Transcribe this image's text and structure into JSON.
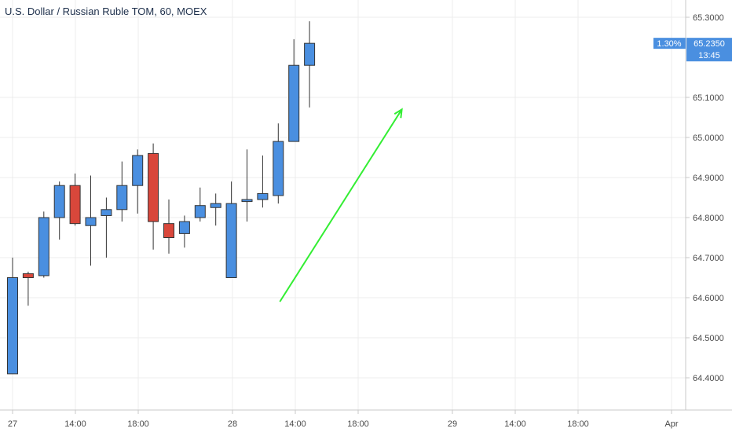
{
  "chart_data": {
    "type": "candlestick",
    "title": "U.S. Dollar / Russian Ruble TOM, 60, MOEX",
    "ylim": [
      64.37,
      65.33
    ],
    "y_ticks": [
      "64.4000",
      "64.5000",
      "64.6000",
      "64.7000",
      "64.8000",
      "64.9000",
      "65.0000",
      "65.1000",
      "65.3000"
    ],
    "x_ticks": [
      "27",
      "14:00",
      "18:00",
      "28",
      "14:00",
      "18:00",
      "29",
      "14:00",
      "18:00",
      "Apr"
    ],
    "candles": [
      {
        "o": 64.41,
        "h": 64.7,
        "l": 64.41,
        "c": 64.65
      },
      {
        "o": 64.66,
        "h": 64.665,
        "l": 64.58,
        "c": 64.65
      },
      {
        "o": 64.655,
        "h": 64.815,
        "l": 64.65,
        "c": 64.8
      },
      {
        "o": 64.8,
        "h": 64.89,
        "l": 64.745,
        "c": 64.88
      },
      {
        "o": 64.88,
        "h": 64.91,
        "l": 64.78,
        "c": 64.785
      },
      {
        "o": 64.78,
        "h": 64.905,
        "l": 64.68,
        "c": 64.8
      },
      {
        "o": 64.805,
        "h": 64.85,
        "l": 64.7,
        "c": 64.82
      },
      {
        "o": 64.82,
        "h": 64.94,
        "l": 64.79,
        "c": 64.88
      },
      {
        "o": 64.88,
        "h": 64.97,
        "l": 64.81,
        "c": 64.955
      },
      {
        "o": 64.96,
        "h": 64.985,
        "l": 64.72,
        "c": 64.79
      },
      {
        "o": 64.785,
        "h": 64.845,
        "l": 64.71,
        "c": 64.75
      },
      {
        "o": 64.76,
        "h": 64.805,
        "l": 64.725,
        "c": 64.79
      },
      {
        "o": 64.8,
        "h": 64.875,
        "l": 64.79,
        "c": 64.83
      },
      {
        "o": 64.825,
        "h": 64.86,
        "l": 64.78,
        "c": 64.835
      },
      {
        "o": 64.65,
        "h": 64.89,
        "l": 64.65,
        "c": 64.835
      },
      {
        "o": 64.84,
        "h": 64.97,
        "l": 64.79,
        "c": 64.845
      },
      {
        "o": 64.845,
        "h": 64.955,
        "l": 64.825,
        "c": 64.86
      },
      {
        "o": 64.855,
        "h": 65.035,
        "l": 64.835,
        "c": 64.99
      },
      {
        "o": 64.99,
        "h": 65.245,
        "l": 64.99,
        "c": 65.18
      },
      {
        "o": 65.18,
        "h": 65.29,
        "l": 65.075,
        "c": 65.235
      }
    ],
    "last_price_label": "65.2350",
    "change_label": "1.30%",
    "countdown_label": "13:45",
    "annotation": {
      "type": "arrow",
      "from": {
        "candle": 17,
        "price": 64.59
      },
      "to": {
        "candle": 24,
        "price": 65.07
      },
      "color": "#33ee33"
    },
    "grid": true,
    "colors": {
      "up": "#4a8fe0",
      "down": "#d9473b",
      "outline": "#333333",
      "badge": "#4a8fe0"
    }
  }
}
